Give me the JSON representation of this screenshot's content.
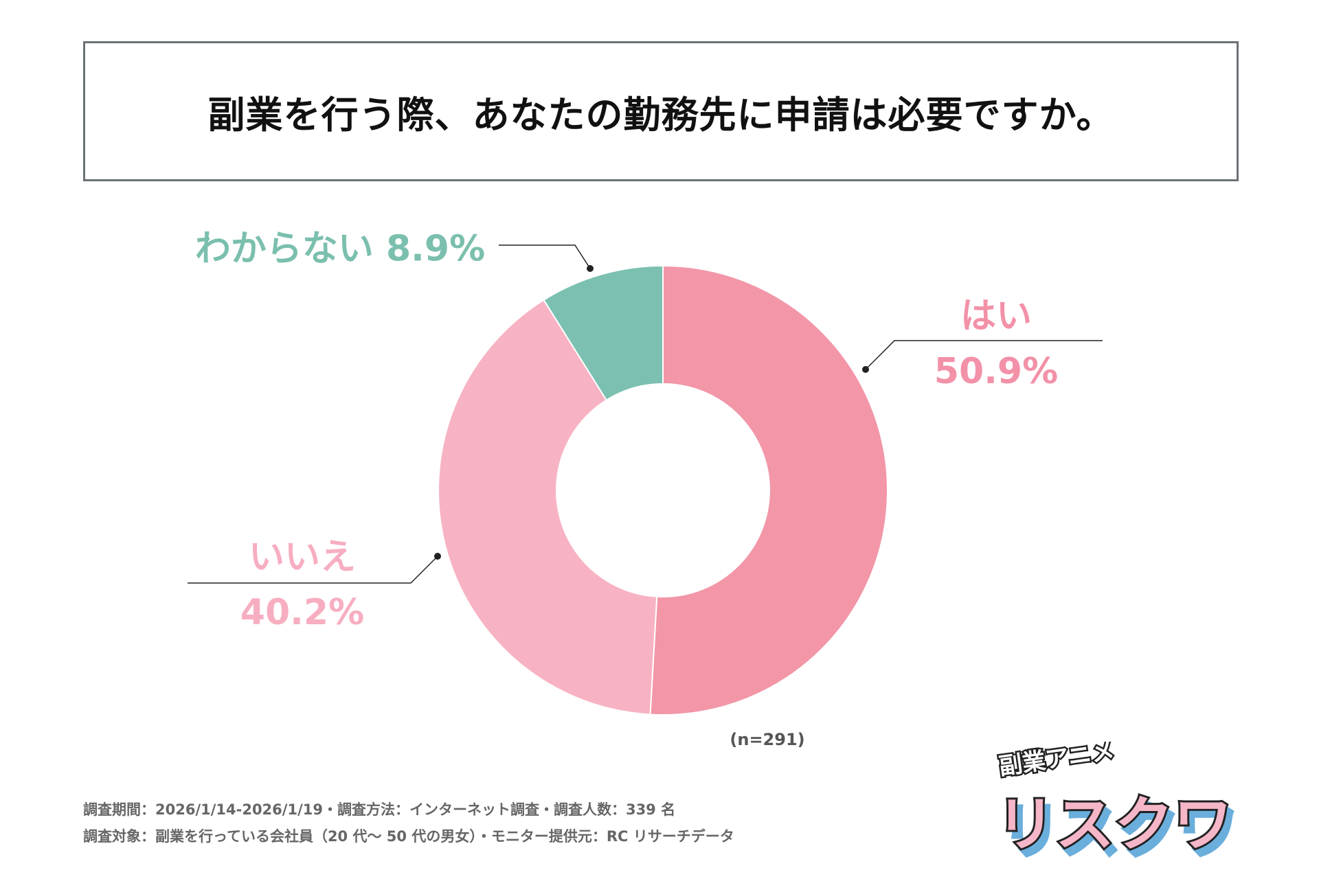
{
  "title": "副業を行う際、あなたの勤務先に申請は必要ですか。",
  "chart_data": {
    "type": "pie",
    "donut": true,
    "title": "副業を行う際、あなたの勤務先に申請は必要ですか。",
    "categories": [
      "はい",
      "いいえ",
      "わからない"
    ],
    "values": [
      50.9,
      40.2,
      8.9
    ],
    "value_labels": [
      "50.9%",
      "40.2%",
      "8.9%"
    ],
    "colors": [
      "#f296a8",
      "#f7b3c3",
      "#7bc0b0"
    ],
    "label_colors": [
      "#f291a8",
      "#f7aec0",
      "#7bbfae"
    ],
    "start": "top",
    "direction": "clockwise",
    "sample_note": "(n=291)"
  },
  "footer": {
    "line1": "調査期間：2026/1/14-2026/1/19・調査方法：インターネット調査・調査人数：339 名",
    "line2": "調査対象：副業を行っている会社員（20 代～ 50 代の男女）・モニター提供元：RC リサーチデータ"
  },
  "logo": {
    "top_text": "副業アニメ",
    "main_text": "リスクワ"
  }
}
